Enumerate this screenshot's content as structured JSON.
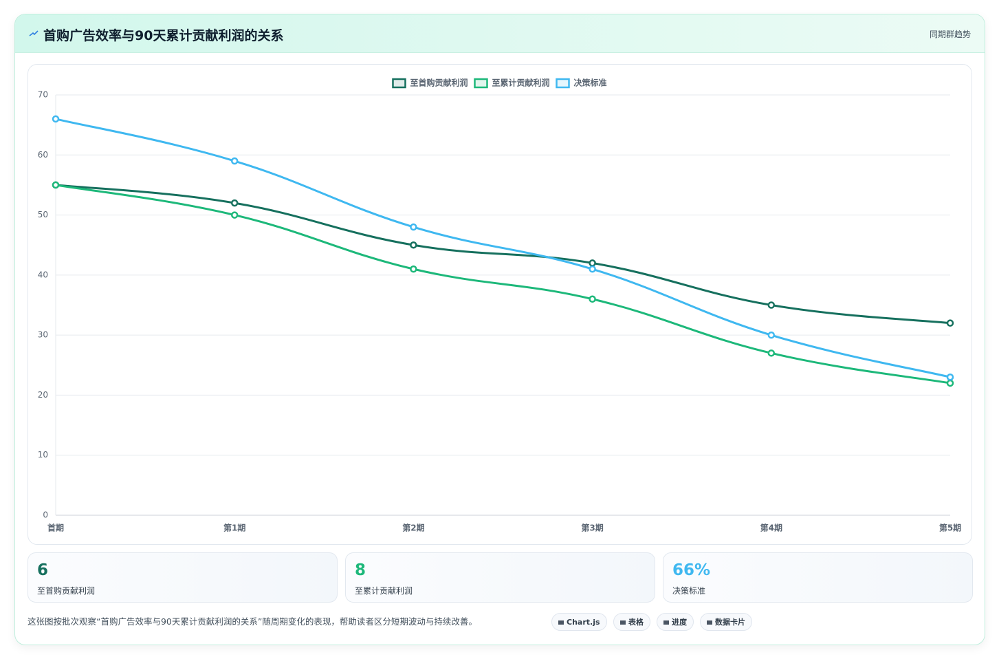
{
  "header": {
    "title": "首购广告效率与90天累计贡献利润的关系",
    "subtitle": "同期群趋势"
  },
  "chart_data": {
    "type": "line",
    "categories": [
      "首期",
      "第1期",
      "第2期",
      "第3期",
      "第4期",
      "第5期"
    ],
    "series": [
      {
        "name": "至首购贡献利润",
        "color": "#16705e",
        "values": [
          55,
          52,
          45,
          42,
          35,
          32
        ]
      },
      {
        "name": "至累计贡献利润",
        "color": "#1db87a",
        "values": [
          55,
          50,
          41,
          36,
          27,
          22
        ]
      },
      {
        "name": "决策标准",
        "color": "#3fb8f0",
        "values": [
          66,
          59,
          48,
          41,
          30,
          23
        ]
      }
    ],
    "ylim": [
      0,
      70
    ],
    "yticks": [
      0,
      10,
      20,
      30,
      40,
      50,
      60,
      70
    ],
    "grid": true,
    "legend": "top"
  },
  "stats": [
    {
      "value": "6",
      "label": "至首购贡献利润",
      "color": "#16705e"
    },
    {
      "value": "8",
      "label": "至累计贡献利润",
      "color": "#1db87a"
    },
    {
      "value": "66%",
      "label": "决策标准",
      "color": "#3fb8f0"
    }
  ],
  "note": "这张图按批次观察“首购广告效率与90天累计贡献利润的关系”随周期变化的表现，帮助读者区分短期波动与持续改善。",
  "tags": [
    "Chart.js",
    "表格",
    "进度",
    "数据卡片"
  ]
}
